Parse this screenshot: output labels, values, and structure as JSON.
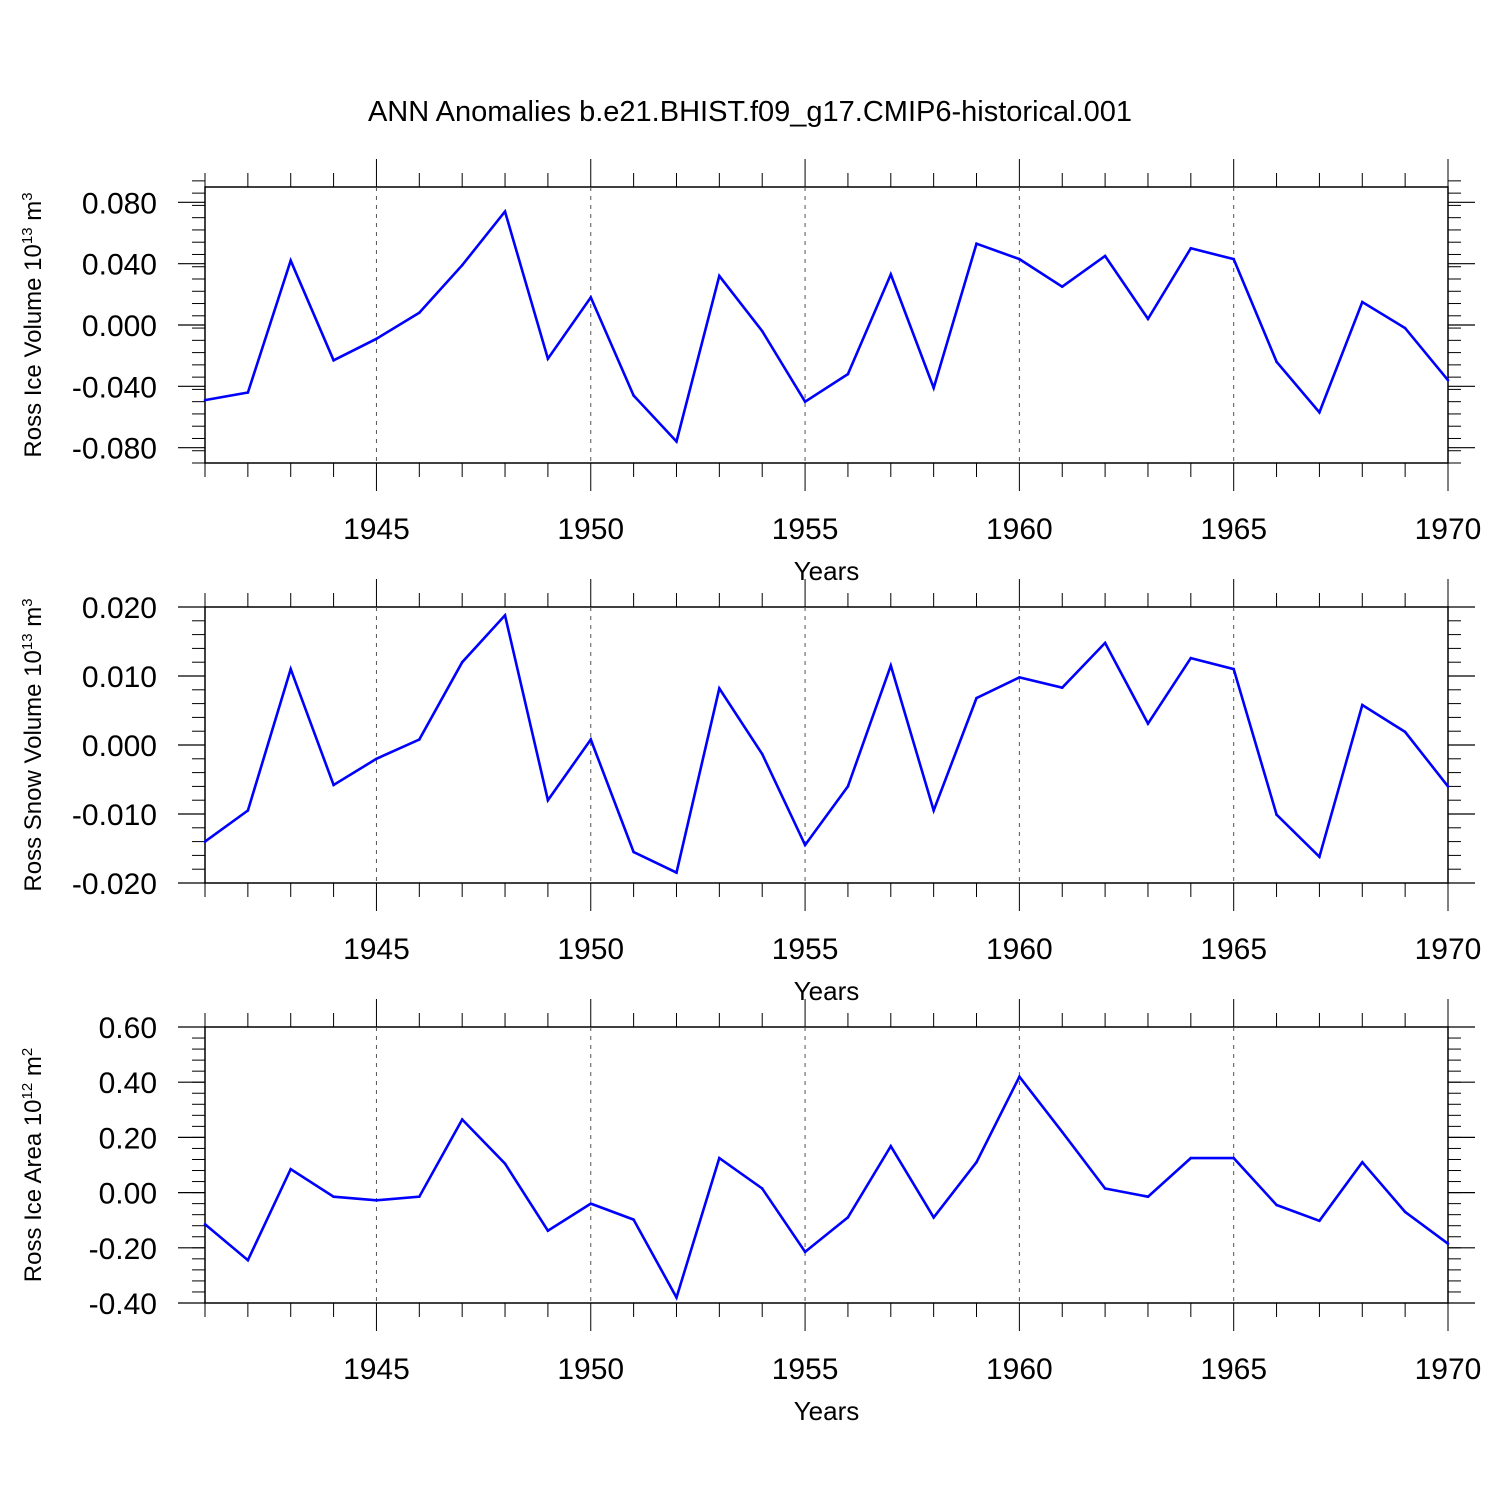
{
  "title": "ANN Anomalies b.e21.BHIST.f09_g17.CMIP6-historical.001",
  "line_color": "#0000ff",
  "chart_data": [
    {
      "type": "line",
      "xlabel": "Years",
      "ylabel": {
        "text": "Ross Ice Volume 10",
        "exp": "13",
        "unit": " m",
        "unit_exp": "3"
      },
      "xlim": [
        1941,
        1970
      ],
      "ylim": [
        -0.09,
        0.09
      ],
      "x_ticks": [
        1945,
        1950,
        1955,
        1960,
        1965,
        1970
      ],
      "y_ticks": [
        -0.08,
        -0.04,
        0.0,
        0.04,
        0.08
      ],
      "y_tick_labels": [
        "-0.080",
        "-0.040",
        "0.000",
        "0.040",
        "0.080"
      ],
      "grid": "dashed vertical at major x ticks",
      "x": [
        1941,
        1942,
        1943,
        1944,
        1945,
        1946,
        1947,
        1948,
        1949,
        1950,
        1951,
        1952,
        1953,
        1954,
        1955,
        1956,
        1957,
        1958,
        1959,
        1960,
        1961,
        1962,
        1963,
        1964,
        1965,
        1966,
        1967,
        1968,
        1969,
        1970
      ],
      "values": [
        -0.049,
        -0.044,
        0.042,
        -0.023,
        -0.009,
        0.008,
        0.039,
        0.074,
        -0.022,
        0.018,
        -0.046,
        -0.076,
        0.032,
        -0.004,
        -0.05,
        -0.032,
        0.033,
        -0.041,
        0.053,
        0.043,
        0.025,
        0.045,
        0.004,
        0.05,
        0.043,
        -0.024,
        -0.057,
        0.015,
        -0.002,
        -0.036
      ]
    },
    {
      "type": "line",
      "xlabel": "Years",
      "ylabel": {
        "text": "Ross Snow Volume 10",
        "exp": "13",
        "unit": " m",
        "unit_exp": "3"
      },
      "xlim": [
        1941,
        1970
      ],
      "ylim": [
        -0.02,
        0.02
      ],
      "x_ticks": [
        1945,
        1950,
        1955,
        1960,
        1965,
        1970
      ],
      "y_ticks": [
        -0.02,
        -0.01,
        0.0,
        0.01,
        0.02
      ],
      "y_tick_labels": [
        "-0.020",
        "-0.010",
        "0.000",
        "0.010",
        "0.020"
      ],
      "grid": "dashed vertical at major x ticks",
      "x": [
        1941,
        1942,
        1943,
        1944,
        1945,
        1946,
        1947,
        1948,
        1949,
        1950,
        1951,
        1952,
        1953,
        1954,
        1955,
        1956,
        1957,
        1958,
        1959,
        1960,
        1961,
        1962,
        1963,
        1964,
        1965,
        1966,
        1967,
        1968,
        1969,
        1970
      ],
      "values": [
        -0.014,
        -0.0095,
        0.011,
        -0.0058,
        -0.002,
        0.0008,
        0.012,
        0.0188,
        -0.008,
        0.0008,
        -0.0155,
        -0.0185,
        0.0082,
        -0.0013,
        -0.0145,
        -0.006,
        0.0115,
        -0.0095,
        0.0068,
        0.0098,
        0.0083,
        0.0148,
        0.0031,
        0.0126,
        0.011,
        -0.0101,
        -0.0162,
        0.0058,
        0.0019,
        -0.006
      ]
    },
    {
      "type": "line",
      "xlabel": "Years",
      "ylabel": {
        "text": "Ross Ice Area 10",
        "exp": "12",
        "unit": " m",
        "unit_exp": "2"
      },
      "xlim": [
        1941,
        1970
      ],
      "ylim": [
        -0.4,
        0.6
      ],
      "x_ticks": [
        1945,
        1950,
        1955,
        1960,
        1965,
        1970
      ],
      "y_ticks": [
        -0.4,
        -0.2,
        0.0,
        0.2,
        0.4,
        0.6
      ],
      "y_tick_labels": [
        "-0.40",
        "-0.20",
        "0.00",
        "0.20",
        "0.40",
        "0.60"
      ],
      "grid": "dashed vertical at major x ticks",
      "x": [
        1941,
        1942,
        1943,
        1944,
        1945,
        1946,
        1947,
        1948,
        1949,
        1950,
        1951,
        1952,
        1953,
        1954,
        1955,
        1956,
        1957,
        1958,
        1959,
        1960,
        1961,
        1962,
        1963,
        1964,
        1965,
        1966,
        1967,
        1968,
        1969,
        1970
      ],
      "values": [
        -0.115,
        -0.245,
        0.085,
        -0.015,
        -0.028,
        -0.015,
        0.265,
        0.105,
        -0.138,
        -0.04,
        -0.098,
        -0.38,
        0.125,
        0.015,
        -0.215,
        -0.09,
        0.168,
        -0.09,
        0.11,
        0.42,
        0.22,
        0.015,
        -0.015,
        0.125,
        0.125,
        -0.045,
        -0.102,
        0.11,
        -0.07,
        -0.185
      ]
    }
  ]
}
